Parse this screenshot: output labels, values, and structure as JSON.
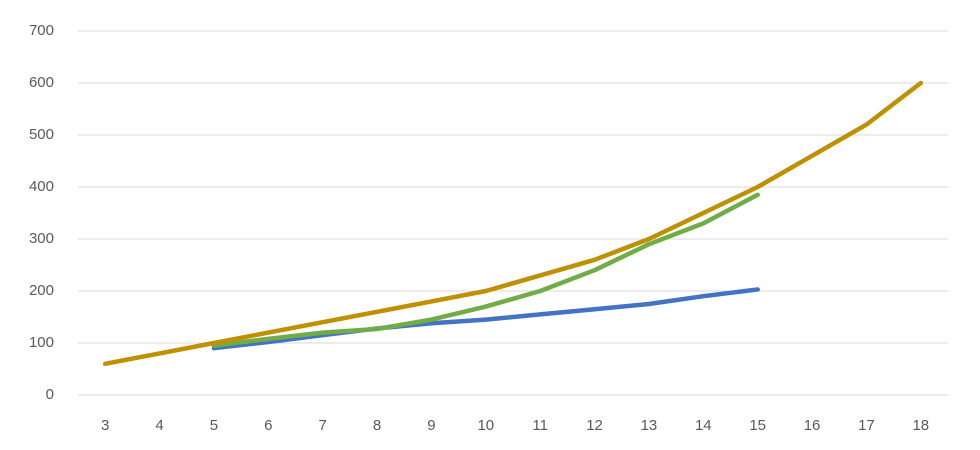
{
  "chart_data": {
    "type": "line",
    "categories": [
      "3",
      "4",
      "5",
      "6",
      "7",
      "8",
      "9",
      "10",
      "11",
      "12",
      "13",
      "14",
      "15",
      "16",
      "17",
      "18"
    ],
    "series": [
      {
        "color": "#4472c4",
        "values": [
          null,
          null,
          90,
          102,
          115,
          128,
          138,
          145,
          155,
          165,
          175,
          190,
          203,
          null,
          null,
          null
        ]
      },
      {
        "color": "#70ad47",
        "values": [
          null,
          null,
          95,
          108,
          120,
          127,
          145,
          170,
          200,
          240,
          290,
          330,
          385,
          null,
          null,
          null
        ]
      },
      {
        "color": "#bf9000",
        "values": [
          60,
          80,
          100,
          120,
          140,
          160,
          180,
          200,
          230,
          260,
          300,
          350,
          400,
          460,
          520,
          600
        ]
      }
    ],
    "ylim": [
      0,
      700
    ],
    "yticks": [
      0,
      100,
      200,
      300,
      400,
      500,
      600,
      700
    ],
    "grid": true
  }
}
